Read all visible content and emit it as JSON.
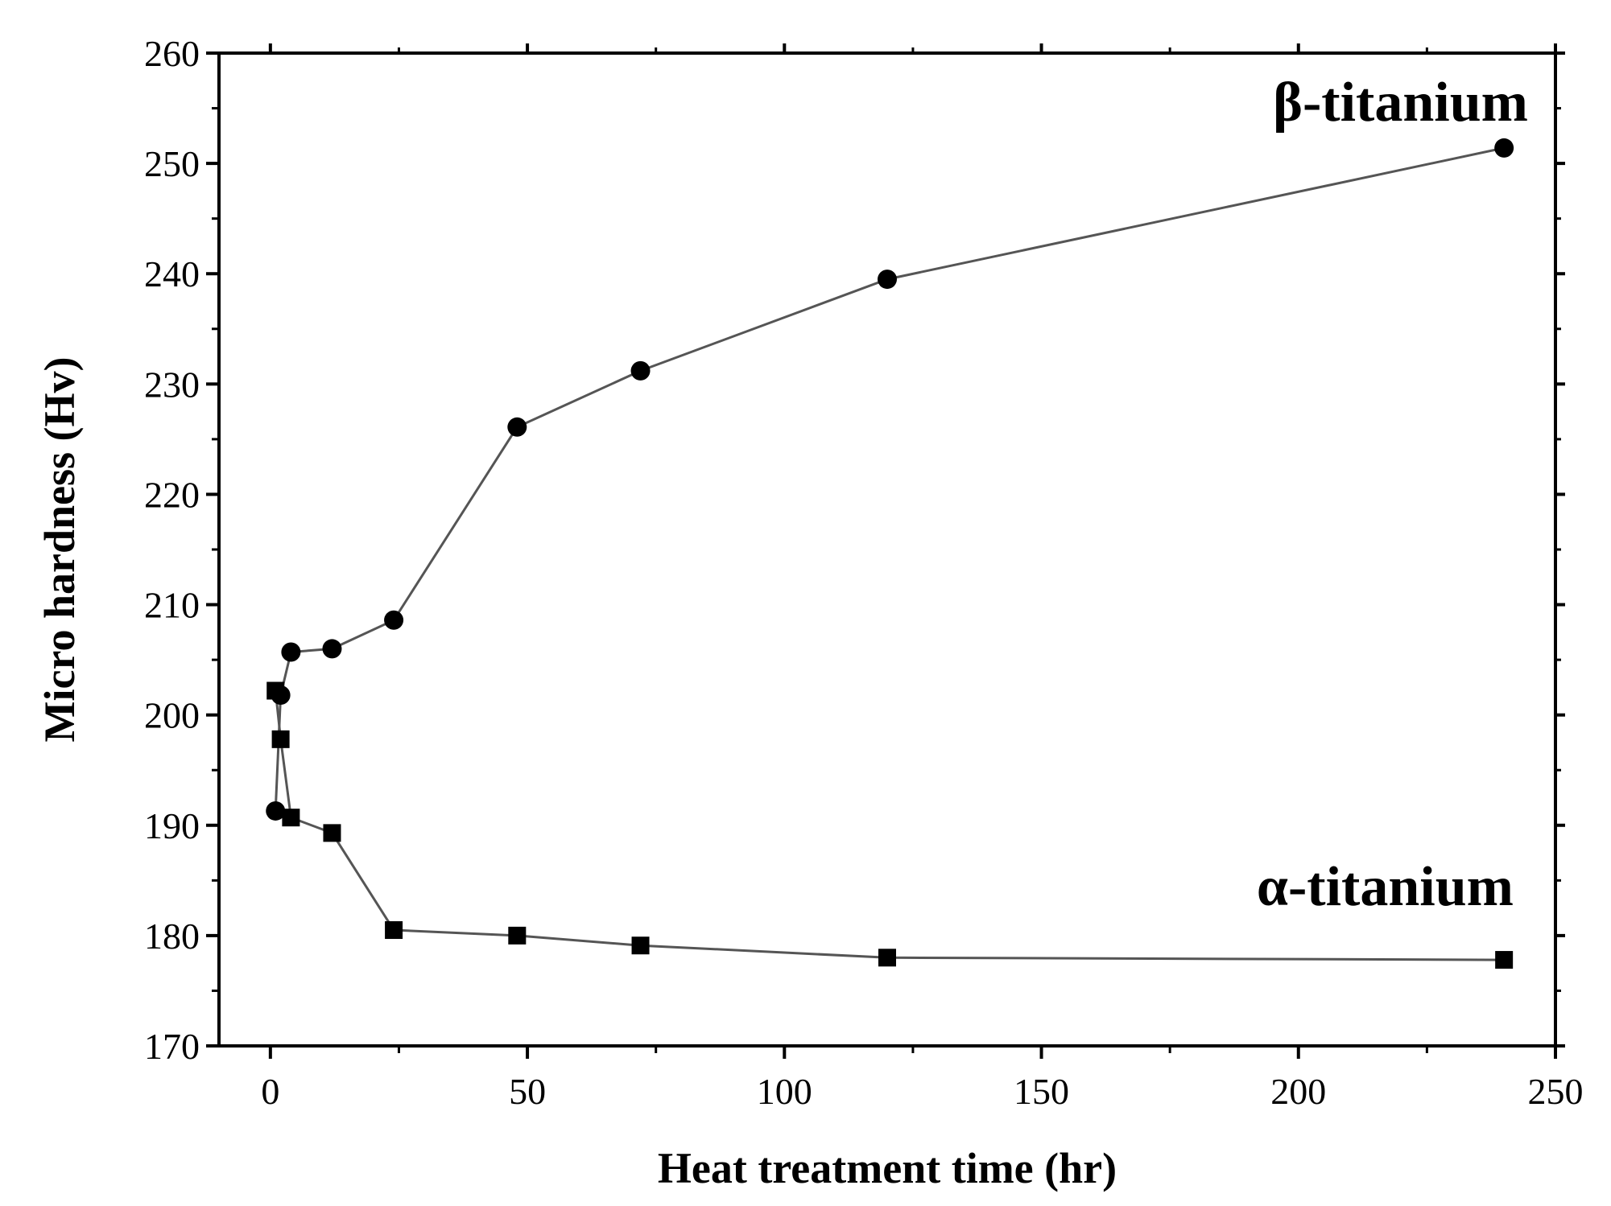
{
  "chart_data": {
    "type": "line",
    "title": "",
    "xlabel": "Heat treatment time (hr)",
    "ylabel": "Micro hardness (Hv)",
    "xlim": [
      -10,
      250
    ],
    "ylim": [
      170,
      260
    ],
    "xticks": [
      0,
      50,
      100,
      150,
      200,
      250
    ],
    "yticks": [
      170,
      180,
      190,
      200,
      210,
      220,
      230,
      240,
      250,
      260
    ],
    "xtick_labels": [
      "0",
      "50",
      "100",
      "150",
      "200",
      "250"
    ],
    "ytick_labels": [
      "170",
      "180",
      "190",
      "200",
      "210",
      "220",
      "230",
      "240",
      "250",
      "260"
    ],
    "grid": false,
    "series": [
      {
        "name": "β-titanium",
        "marker": "circle",
        "color": "#000000",
        "line_color": "#555555",
        "x": [
          1,
          2,
          4,
          12,
          24,
          48,
          72,
          120,
          240
        ],
        "y": [
          191.3,
          201.8,
          205.7,
          206.0,
          208.6,
          226.1,
          231.2,
          239.5,
          251.4
        ]
      },
      {
        "name": "α-titanium",
        "marker": "square",
        "color": "#000000",
        "line_color": "#555555",
        "x": [
          1,
          2,
          4,
          12,
          24,
          48,
          72,
          120,
          240
        ],
        "y": [
          202.2,
          197.8,
          190.7,
          189.3,
          180.5,
          180.0,
          179.1,
          178.0,
          177.8
        ]
      }
    ],
    "annotations": [
      {
        "text": "β-titanium",
        "series": 0
      },
      {
        "text": "α-titanium",
        "series": 1
      }
    ]
  }
}
